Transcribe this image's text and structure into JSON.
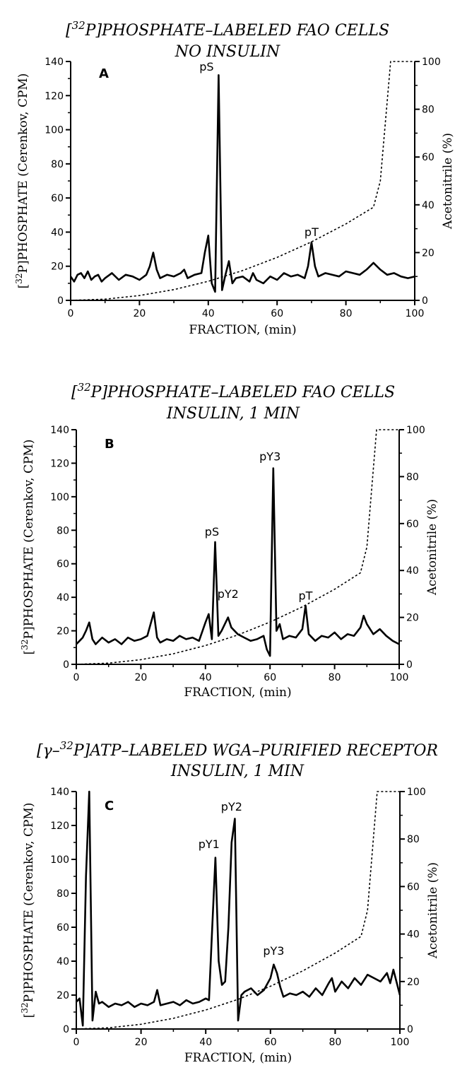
{
  "figure": {
    "panels": [
      {
        "title_line1": "[32P]PHOSPHATE–LABELED FAO CELLS",
        "title_line2": "NO INSULIN",
        "panel_label": "A"
      },
      {
        "title_line1": "[32P]PHOSPHATE–LABELED FAO CELLS",
        "title_line2": "INSULIN, 1 MIN",
        "panel_label": "B"
      },
      {
        "title_line1": "[γ–32P]ATP–LABELED WGA–PURIFIED RECEPTOR",
        "title_line2": "INSULIN, 1 MIN",
        "panel_label": "C"
      }
    ]
  },
  "chart_data": [
    {
      "type": "line",
      "title": "[32P]PHOSPHATE–LABELED FAO CELLS NO INSULIN",
      "panel_label": "A",
      "xlabel": "FRACTION, (min)",
      "ylabel": "[32P]PHOSPHATE (Cerenkov, CPM)",
      "y2label": "Acetonitrile (%)",
      "xlim": [
        0,
        100
      ],
      "ylim": [
        0,
        140
      ],
      "y2lim": [
        0,
        100
      ],
      "xticks": [
        0,
        20,
        40,
        60,
        80,
        100
      ],
      "yticks": [
        0,
        20,
        40,
        60,
        80,
        100,
        120,
        140
      ],
      "y2ticks": [
        0,
        20,
        40,
        60,
        80,
        100
      ],
      "annotations": [
        {
          "text": "pS",
          "x": 39.5,
          "y": 133
        },
        {
          "text": "pT",
          "x": 70,
          "y": 36
        }
      ],
      "series": [
        {
          "style": "solid",
          "axis": "left",
          "x": [
            0,
            1,
            2,
            3,
            4,
            5,
            6,
            7,
            8,
            9,
            10,
            12,
            14,
            16,
            18,
            20,
            22,
            23,
            24,
            25,
            26,
            28,
            30,
            32,
            33,
            34,
            36,
            38,
            39,
            40,
            41,
            42,
            43,
            44,
            45,
            46,
            47,
            48,
            50,
            52,
            53,
            54,
            56,
            58,
            60,
            62,
            64,
            66,
            68,
            69,
            70,
            71,
            72,
            74,
            76,
            78,
            80,
            82,
            84,
            86,
            88,
            90,
            92,
            94,
            96,
            98,
            100
          ],
          "y": [
            14,
            11,
            15,
            16,
            13,
            17,
            12,
            14,
            15,
            11,
            13,
            16,
            12,
            15,
            14,
            12,
            15,
            20,
            28,
            18,
            13,
            15,
            14,
            16,
            18,
            13,
            15,
            16,
            28,
            38,
            10,
            5,
            132,
            6,
            15,
            23,
            10,
            13,
            14,
            11,
            16,
            12,
            10,
            14,
            12,
            16,
            14,
            15,
            13,
            20,
            34,
            20,
            14,
            16,
            15,
            14,
            17,
            16,
            15,
            18,
            22,
            18,
            15,
            16,
            14,
            13,
            14
          ]
        },
        {
          "style": "dotted",
          "axis": "right",
          "x": [
            0,
            10,
            20,
            30,
            40,
            50,
            60,
            70,
            80,
            88,
            90,
            93,
            100
          ],
          "y": [
            0,
            0.5,
            2,
            4.5,
            8,
            12.5,
            18,
            24.5,
            32,
            39,
            50,
            100,
            100
          ]
        }
      ]
    },
    {
      "type": "line",
      "title": "[32P]PHOSPHATE–LABELED FAO CELLS INSULIN, 1 MIN",
      "panel_label": "B",
      "xlabel": "FRACTION, (min)",
      "ylabel": "[32P]PHOSPHATE (Cerenkov, CPM)",
      "y2label": "Acetonitrile (%)",
      "xlim": [
        0,
        100
      ],
      "ylim": [
        0,
        140
      ],
      "y2lim": [
        0,
        100
      ],
      "xticks": [
        0,
        20,
        40,
        60,
        80,
        100
      ],
      "yticks": [
        0,
        20,
        40,
        60,
        80,
        100,
        120,
        140
      ],
      "y2ticks": [
        0,
        20,
        40,
        60,
        80,
        100
      ],
      "annotations": [
        {
          "text": "pS",
          "x": 42,
          "y": 75
        },
        {
          "text": "pY2",
          "x": 47,
          "y": 38
        },
        {
          "text": "pY3",
          "x": 60,
          "y": 120
        },
        {
          "text": "pT",
          "x": 71,
          "y": 37
        }
      ],
      "series": [
        {
          "style": "solid",
          "axis": "left",
          "x": [
            0,
            1,
            2,
            3,
            4,
            5,
            6,
            8,
            10,
            12,
            14,
            16,
            18,
            20,
            22,
            23,
            24,
            25,
            26,
            28,
            30,
            32,
            34,
            36,
            38,
            40,
            41,
            42,
            43,
            44,
            45,
            46,
            47,
            48,
            50,
            52,
            54,
            56,
            58,
            59,
            60,
            61,
            62,
            63,
            64,
            66,
            68,
            70,
            71,
            72,
            74,
            76,
            78,
            80,
            82,
            84,
            86,
            88,
            89,
            90,
            92,
            94,
            96,
            98,
            100
          ],
          "y": [
            12,
            14,
            16,
            20,
            25,
            15,
            12,
            16,
            13,
            15,
            12,
            16,
            14,
            15,
            17,
            24,
            31,
            16,
            13,
            15,
            14,
            17,
            15,
            16,
            14,
            25,
            30,
            15,
            73,
            17,
            20,
            24,
            28,
            22,
            18,
            16,
            14,
            15,
            17,
            9,
            5,
            117,
            20,
            24,
            15,
            17,
            16,
            21,
            35,
            18,
            14,
            17,
            16,
            19,
            15,
            18,
            17,
            22,
            29,
            24,
            18,
            21,
            17,
            14,
            12
          ]
        },
        {
          "style": "dotted",
          "axis": "right",
          "x": [
            0,
            10,
            20,
            30,
            40,
            50,
            60,
            70,
            80,
            88,
            90,
            93,
            100
          ],
          "y": [
            0,
            0.5,
            2,
            4.5,
            8,
            12.5,
            18,
            24.5,
            32,
            39,
            50,
            100,
            100
          ]
        }
      ]
    },
    {
      "type": "line",
      "title": "[γ–32P]ATP–LABELED WGA–PURIFIED RECEPTOR INSULIN, 1 MIN",
      "panel_label": "C",
      "xlabel": "FRACTION, (min)",
      "ylabel": "[32P]PHOSPHATE (Cerenkov, CPM)",
      "y2label": "Acetonitrile (%)",
      "xlim": [
        0,
        100
      ],
      "ylim": [
        0,
        140
      ],
      "y2lim": [
        0,
        100
      ],
      "xticks": [
        0,
        20,
        40,
        60,
        80,
        100
      ],
      "yticks": [
        0,
        20,
        40,
        60,
        80,
        100,
        120,
        140
      ],
      "y2ticks": [
        0,
        20,
        40,
        60,
        80,
        100
      ],
      "annotations": [
        {
          "text": "pY1",
          "x": 41,
          "y": 105
        },
        {
          "text": "pY2",
          "x": 48,
          "y": 127
        },
        {
          "text": "pY3",
          "x": 61,
          "y": 42
        }
      ],
      "series": [
        {
          "style": "solid",
          "axis": "left",
          "x": [
            0,
            1,
            2,
            3,
            4,
            5,
            6,
            7,
            8,
            10,
            12,
            14,
            16,
            18,
            20,
            22,
            24,
            25,
            26,
            28,
            30,
            32,
            34,
            36,
            38,
            40,
            41,
            42,
            43,
            44,
            45,
            46,
            47,
            48,
            49,
            50,
            51,
            52,
            54,
            56,
            58,
            60,
            61,
            62,
            63,
            64,
            66,
            68,
            70,
            72,
            74,
            76,
            78,
            79,
            80,
            82,
            84,
            86,
            88,
            90,
            92,
            94,
            96,
            97,
            98,
            100
          ],
          "y": [
            16,
            18,
            2,
            90,
            140,
            5,
            22,
            15,
            16,
            13,
            15,
            14,
            16,
            13,
            15,
            14,
            16,
            23,
            14,
            15,
            16,
            14,
            17,
            15,
            16,
            18,
            17,
            60,
            101,
            40,
            26,
            28,
            60,
            110,
            124,
            5,
            20,
            22,
            24,
            20,
            23,
            30,
            38,
            33,
            25,
            19,
            21,
            20,
            22,
            19,
            24,
            20,
            27,
            30,
            22,
            28,
            24,
            30,
            26,
            32,
            30,
            28,
            33,
            27,
            35,
            20
          ]
        },
        {
          "style": "dotted",
          "axis": "right",
          "x": [
            0,
            10,
            20,
            30,
            40,
            50,
            60,
            70,
            80,
            88,
            90,
            93,
            100
          ],
          "y": [
            0,
            0.5,
            2,
            4.5,
            8,
            12.5,
            18,
            24.5,
            32,
            39,
            50,
            100,
            100
          ]
        }
      ]
    }
  ]
}
